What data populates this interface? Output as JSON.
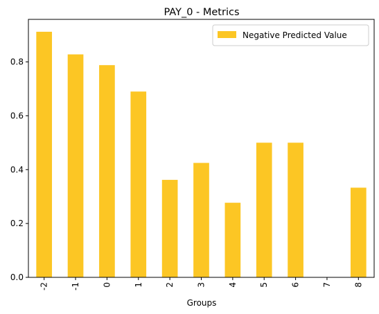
{
  "chart_data": {
    "type": "bar",
    "title": "PAY_0 - Metrics",
    "xlabel": "Groups",
    "ylabel": "",
    "categories": [
      "-2",
      "-1",
      "0",
      "1",
      "2",
      "3",
      "4",
      "5",
      "6",
      "7",
      "8"
    ],
    "series": [
      {
        "name": "Negative Predicted Value",
        "values": [
          0.912,
          0.828,
          0.788,
          0.69,
          0.362,
          0.425,
          0.277,
          0.5,
          0.5,
          0.0,
          0.333
        ]
      }
    ],
    "ylim": [
      0,
      0.958
    ],
    "yticks": [
      "0.0",
      "0.2",
      "0.4",
      "0.6",
      "0.8"
    ],
    "ytick_values": [
      0,
      0.2,
      0.4,
      0.6,
      0.8
    ],
    "bar_color": "#fcc624",
    "legend_position": "top-right",
    "grid": false
  }
}
